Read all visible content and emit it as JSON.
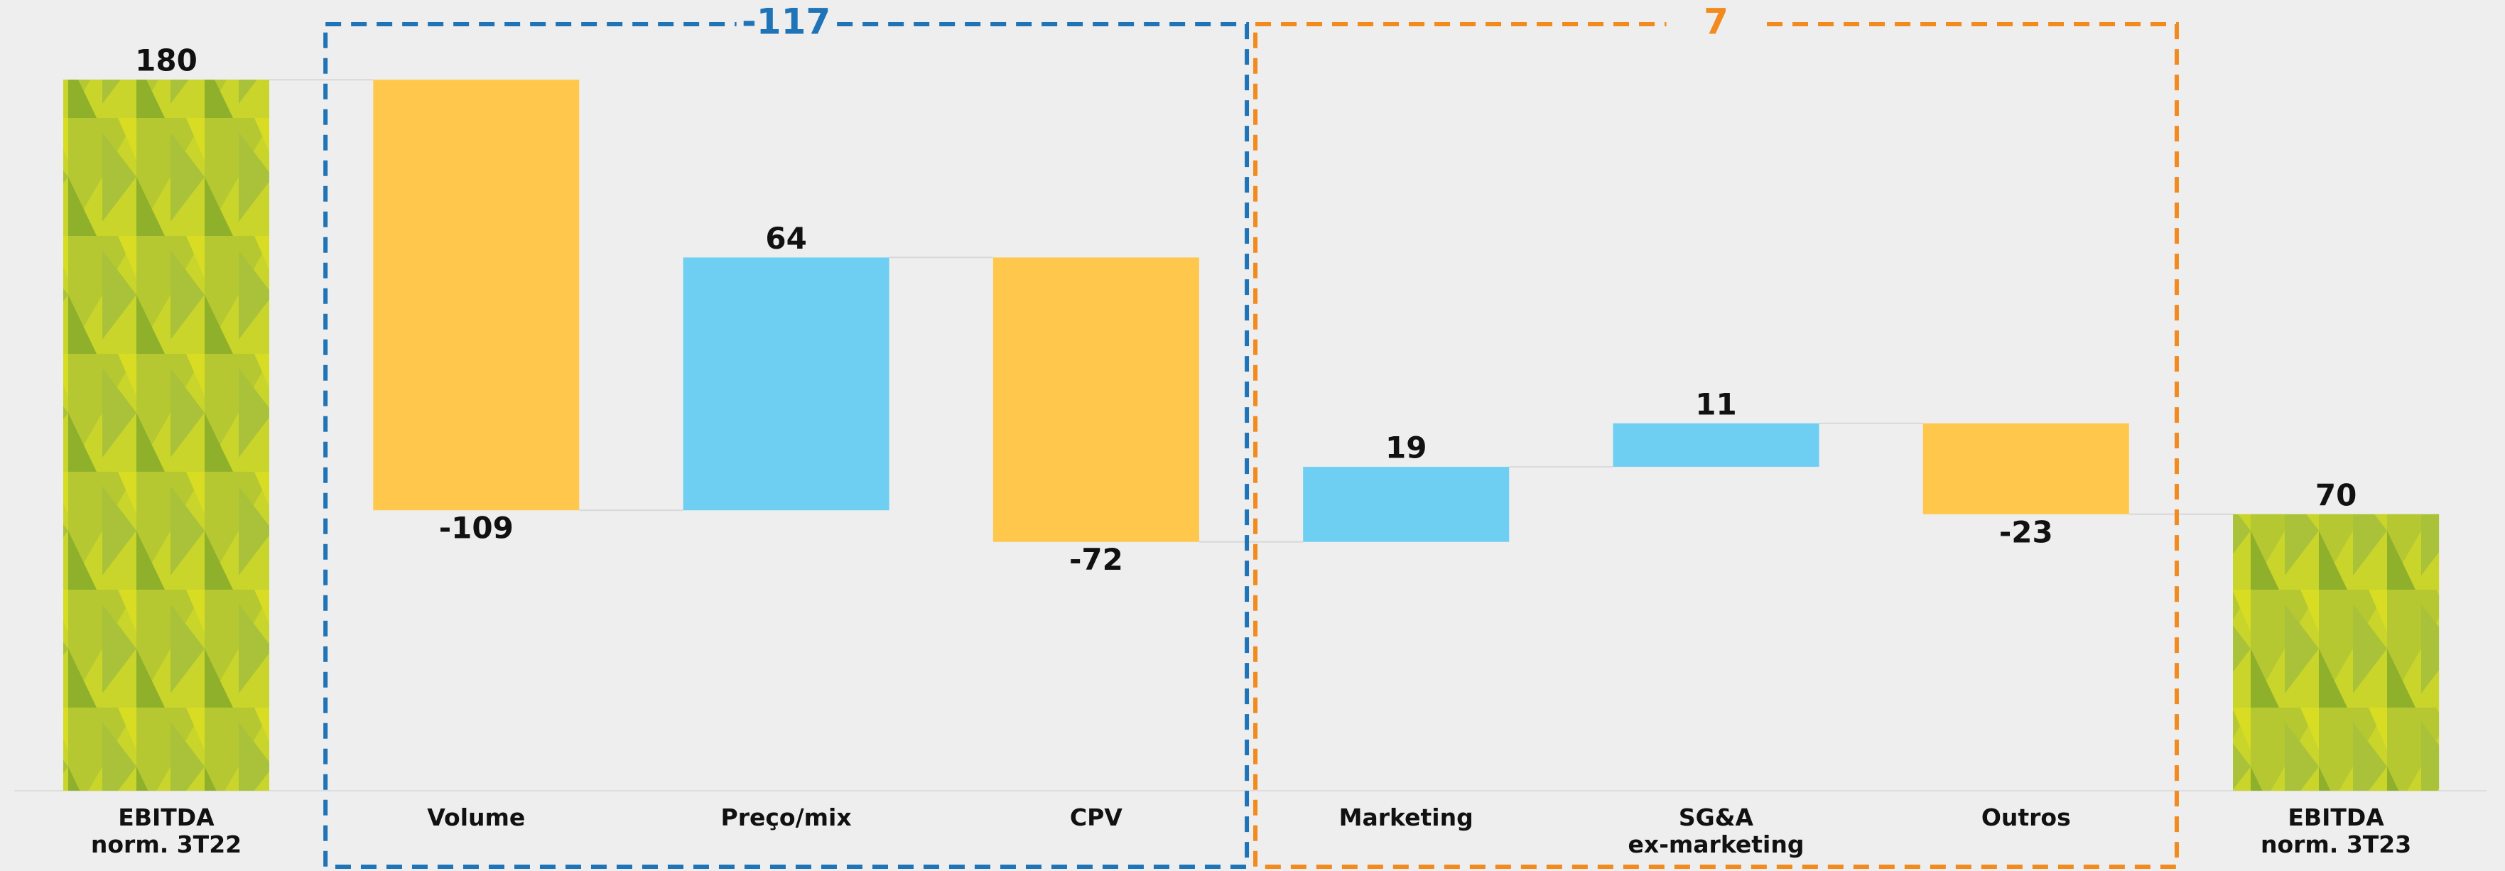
{
  "chart_data": {
    "type": "waterfall",
    "categories": [
      "EBITDA\nnorm. 3T22",
      "Volume",
      "Preço/mix",
      "CPV",
      "Marketing",
      "SG&A\nex-marketing",
      "Outros",
      "EBITDA\nnorm. 3T23"
    ],
    "values": [
      180,
      -109,
      64,
      -72,
      19,
      11,
      -23,
      70
    ],
    "colors": {
      "total": "#c9d52b",
      "increase": "#6ecff3",
      "decrease": "#ffc84c"
    },
    "ylim": [
      0,
      200
    ],
    "groups": [
      {
        "value": -117,
        "color": "#1f73b7"
      },
      {
        "value": 7,
        "color": "#f28a1e"
      }
    ]
  }
}
